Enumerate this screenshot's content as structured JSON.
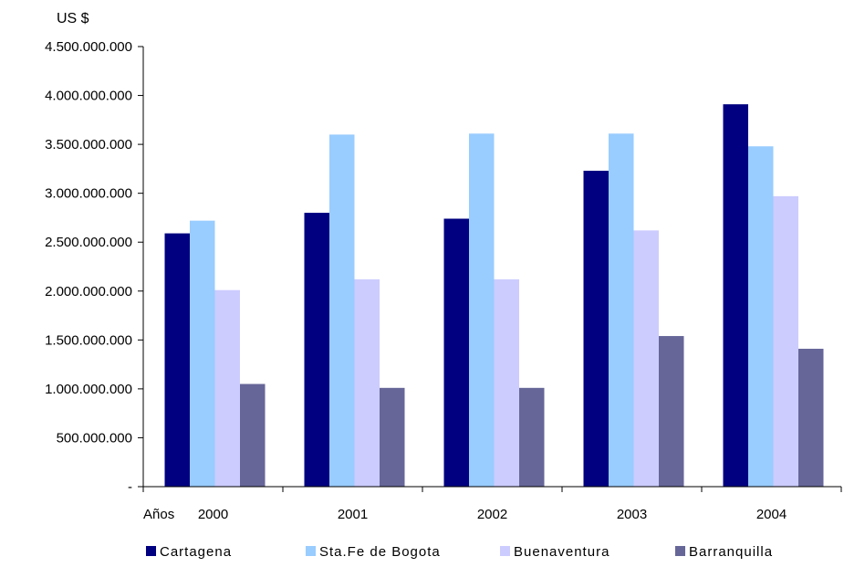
{
  "chart_data": {
    "type": "bar",
    "ylabel": "US $",
    "xlabel": "Años",
    "ylim": [
      0,
      4500000000
    ],
    "yticks": [
      0,
      500000000,
      1000000000,
      1500000000,
      2000000000,
      2500000000,
      3000000000,
      3500000000,
      4000000000,
      4500000000
    ],
    "ytick_labels": [
      "-",
      "500.000.000",
      "1.000.000.000",
      "1.500.000.000",
      "2.000.000.000",
      "2.500.000.000",
      "3.000.000.000",
      "3.500.000.000",
      "4.000.000.000",
      "4.500.000.000"
    ],
    "categories": [
      "2000",
      "2001",
      "2002",
      "2003",
      "2004"
    ],
    "series": [
      {
        "name": "Cartagena",
        "color": "#000080",
        "values": [
          2590000000,
          2800000000,
          2740000000,
          3230000000,
          3910000000
        ]
      },
      {
        "name": "Sta.Fe de Bogota",
        "color": "#99ccff",
        "values": [
          2720000000,
          3600000000,
          3610000000,
          3610000000,
          3480000000
        ]
      },
      {
        "name": "Buenaventura",
        "color": "#ccccff",
        "values": [
          2010000000,
          2120000000,
          2120000000,
          2620000000,
          2970000000
        ]
      },
      {
        "name": "Barranquilla",
        "color": "#666699",
        "values": [
          1050000000,
          1010000000,
          1010000000,
          1540000000,
          1410000000
        ]
      }
    ],
    "grid": false,
    "legend_position": "bottom"
  }
}
